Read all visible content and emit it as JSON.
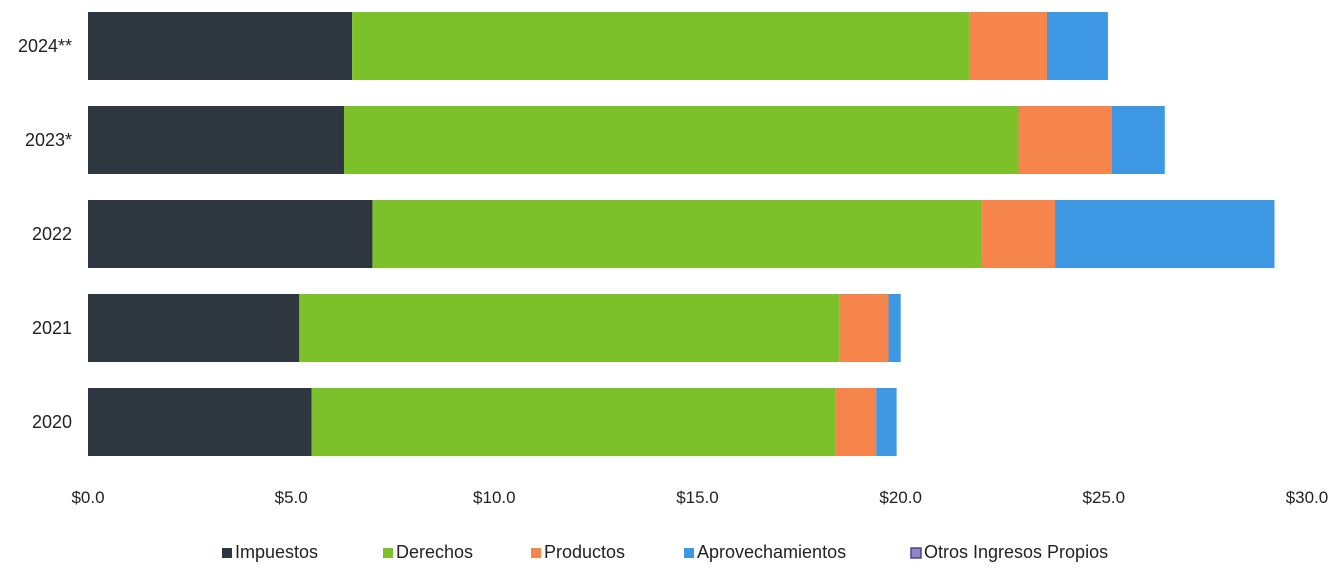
{
  "chart_data": {
    "type": "bar",
    "orientation": "horizontal",
    "stacked": true,
    "title": "",
    "xlabel": "",
    "ylabel": "",
    "categories": [
      "2024**",
      "2023*",
      "2022",
      "2021",
      "2020"
    ],
    "xlim": [
      0,
      30
    ],
    "x_ticks": [
      0,
      5,
      10,
      15,
      20,
      25,
      30
    ],
    "x_tick_labels": [
      "$0.0",
      "$5.0",
      "$10.0",
      "$15.0",
      "$20.0",
      "$25.0",
      "$30.0"
    ],
    "grid": false,
    "legend_position": "bottom",
    "series": [
      {
        "name": "Impuestos",
        "color": "#2e3640",
        "values": [
          6.5,
          6.3,
          7.0,
          5.2,
          5.5
        ]
      },
      {
        "name": "Derechos",
        "color": "#7cc02a",
        "values": [
          15.2,
          16.6,
          15.0,
          13.3,
          12.9
        ]
      },
      {
        "name": "Productos",
        "color": "#f5854a",
        "values": [
          1.9,
          2.3,
          1.8,
          1.2,
          1.0
        ]
      },
      {
        "name": "Aprovechamientos",
        "color": "#3d97e3",
        "values": [
          1.5,
          1.3,
          5.4,
          0.3,
          0.5
        ]
      },
      {
        "name": "Otros Ingresos Propios",
        "color": "#8f86c8",
        "values": [
          0,
          0,
          0,
          0,
          0
        ]
      }
    ]
  }
}
